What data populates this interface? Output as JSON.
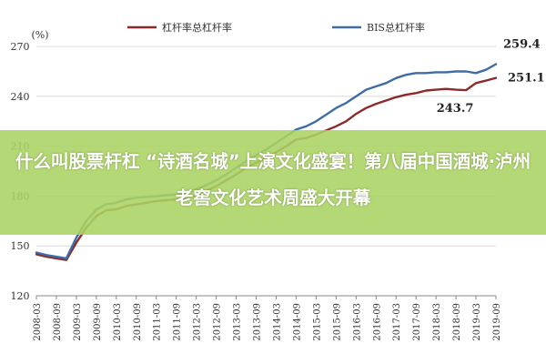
{
  "chart_data": {
    "type": "line",
    "ylabel": "(%)",
    "ylim": [
      120,
      275
    ],
    "yticks": [
      120,
      150,
      180,
      210,
      240,
      270
    ],
    "x": [
      "2008-03",
      "2008-09",
      "2009-03",
      "2009-09",
      "2010-03",
      "2010-09",
      "2011-03",
      "2011-09",
      "2012-03",
      "2012-09",
      "2013-03",
      "2013-09",
      "2014-03",
      "2014-09",
      "2015-03",
      "2015-09",
      "2016-03",
      "2016-09",
      "2017-03",
      "2017-09",
      "2018-03",
      "2018-09",
      "2019-03",
      "2019-09"
    ],
    "grid": "horizontal",
    "legend": "top",
    "series": [
      {
        "name": "杠杆率总杠杆率",
        "color": "#8b2a2a",
        "points": [
          [
            "2008-03",
            145
          ],
          [
            "2008-06",
            143.5
          ],
          [
            "2008-09",
            142.5
          ],
          [
            "2008-12",
            141.5
          ],
          [
            "2009-03",
            152
          ],
          [
            "2009-06",
            161
          ],
          [
            "2009-09",
            168
          ],
          [
            "2009-12",
            171.5
          ],
          [
            "2010-03",
            172
          ],
          [
            "2010-06",
            174
          ],
          [
            "2010-09",
            175
          ],
          [
            "2010-12",
            176
          ],
          [
            "2011-03",
            177
          ],
          [
            "2011-06",
            177.5
          ],
          [
            "2011-09",
            178
          ],
          [
            "2011-12",
            178.5
          ],
          [
            "2012-03",
            180.5
          ],
          [
            "2012-06",
            183
          ],
          [
            "2012-09",
            186
          ],
          [
            "2012-12",
            189.5
          ],
          [
            "2013-03",
            193
          ],
          [
            "2013-06",
            197
          ],
          [
            "2013-09",
            200
          ],
          [
            "2013-12",
            203
          ],
          [
            "2014-03",
            206.5
          ],
          [
            "2014-06",
            210
          ],
          [
            "2014-09",
            214
          ],
          [
            "2014-12",
            215
          ],
          [
            "2015-03",
            217
          ],
          [
            "2015-06",
            219.5
          ],
          [
            "2015-09",
            222
          ],
          [
            "2015-12",
            225
          ],
          [
            "2016-03",
            229.5
          ],
          [
            "2016-06",
            233
          ],
          [
            "2016-09",
            235.5
          ],
          [
            "2016-12",
            237.5
          ],
          [
            "2017-03",
            239.5
          ],
          [
            "2017-06",
            241
          ],
          [
            "2017-09",
            242
          ],
          [
            "2017-12",
            243.5
          ],
          [
            "2018-03",
            244
          ],
          [
            "2018-06",
            244.5
          ],
          [
            "2018-09",
            244
          ],
          [
            "2018-12",
            243.7
          ],
          [
            "2019-03",
            248
          ],
          [
            "2019-06",
            249.5
          ],
          [
            "2019-09",
            251.1
          ]
        ]
      },
      {
        "name": "BIS总杠杆率",
        "color": "#3f6da3",
        "points": [
          [
            "2008-03",
            146
          ],
          [
            "2008-06",
            144.5
          ],
          [
            "2008-09",
            143.5
          ],
          [
            "2008-12",
            142.5
          ],
          [
            "2009-03",
            155
          ],
          [
            "2009-06",
            165
          ],
          [
            "2009-09",
            172
          ],
          [
            "2009-12",
            175
          ],
          [
            "2010-03",
            176
          ],
          [
            "2010-06",
            178
          ],
          [
            "2010-09",
            179
          ],
          [
            "2010-12",
            179.5
          ],
          [
            "2011-03",
            180
          ],
          [
            "2011-06",
            180.5
          ],
          [
            "2011-09",
            181
          ],
          [
            "2011-12",
            182
          ],
          [
            "2012-03",
            184
          ],
          [
            "2012-06",
            186.5
          ],
          [
            "2012-09",
            189.5
          ],
          [
            "2012-12",
            193
          ],
          [
            "2013-03",
            197
          ],
          [
            "2013-06",
            201
          ],
          [
            "2013-09",
            204.5
          ],
          [
            "2013-12",
            208
          ],
          [
            "2014-03",
            212
          ],
          [
            "2014-06",
            216
          ],
          [
            "2014-09",
            220
          ],
          [
            "2014-12",
            222
          ],
          [
            "2015-03",
            225
          ],
          [
            "2015-06",
            229
          ],
          [
            "2015-09",
            233
          ],
          [
            "2015-12",
            236
          ],
          [
            "2016-03",
            240
          ],
          [
            "2016-06",
            244
          ],
          [
            "2016-09",
            246
          ],
          [
            "2016-12",
            248
          ],
          [
            "2017-03",
            251
          ],
          [
            "2017-06",
            253
          ],
          [
            "2017-09",
            254
          ],
          [
            "2017-12",
            254
          ],
          [
            "2018-03",
            254.5
          ],
          [
            "2018-06",
            254.5
          ],
          [
            "2018-09",
            255
          ],
          [
            "2018-12",
            255
          ],
          [
            "2019-03",
            254
          ],
          [
            "2019-06",
            256
          ],
          [
            "2019-09",
            259.4
          ]
        ]
      }
    ],
    "annotations": [
      {
        "text": "259.4",
        "series": 1,
        "at": "2019-09"
      },
      {
        "text": "251.1",
        "series": 0,
        "at": "2019-09"
      },
      {
        "text": "243.7",
        "series": 0,
        "at": "2018-12"
      }
    ]
  },
  "overlay": {
    "headline": "什么叫股票杆杠 “诗酒名城”上演文化盛宴！第八届中国酒城·泸州老窖文化艺术周盛大开幕",
    "color": "#abd363"
  }
}
